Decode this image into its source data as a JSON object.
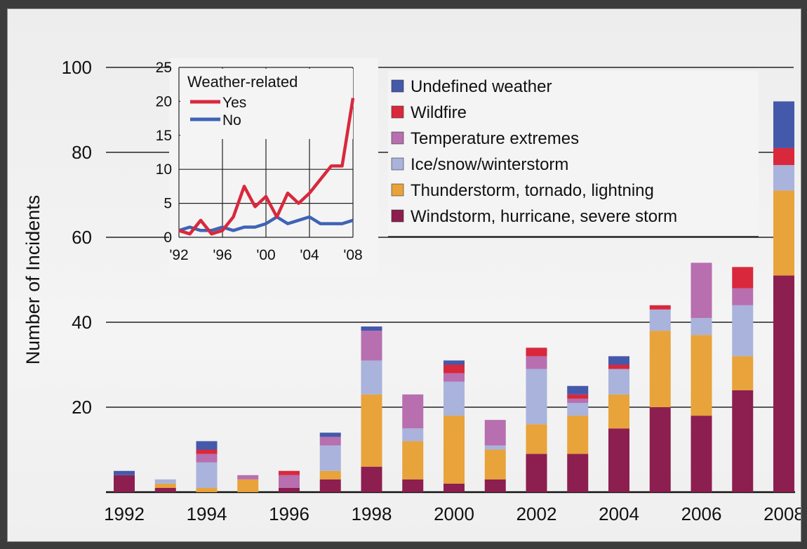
{
  "chart_data": {
    "type": "bar",
    "stacked": true,
    "ylabel": "Number of Incidents",
    "ylim": [
      0,
      100
    ],
    "yticks": [
      20,
      40,
      60,
      80,
      100
    ],
    "categories": [
      "1992",
      "1993",
      "1994",
      "1995",
      "1996",
      "1997",
      "1998",
      "1999",
      "2000",
      "2001",
      "2002",
      "2003",
      "2004",
      "2005",
      "2006",
      "2007",
      "2008"
    ],
    "xtick_labels": [
      "1992",
      "1994",
      "1996",
      "1998",
      "2000",
      "2002",
      "2004",
      "2006",
      "2008"
    ],
    "grid": true,
    "legend_position": "top-right",
    "series": [
      {
        "name": "Windstorm, hurricane, severe storm",
        "color": "#8c1f4f",
        "values": [
          4,
          1,
          0,
          0,
          1,
          3,
          6,
          3,
          2,
          3,
          9,
          9,
          15,
          20,
          18,
          24,
          51
        ]
      },
      {
        "name": "Thunderstorm, tornado, lightning",
        "color": "#e8a33a",
        "values": [
          0,
          1,
          1,
          3,
          0,
          2,
          17,
          9,
          16,
          7,
          7,
          9,
          8,
          18,
          19,
          8,
          20
        ]
      },
      {
        "name": "Ice/snow/winterstorm",
        "color": "#a9b3dc",
        "values": [
          0,
          1,
          6,
          0,
          0,
          6,
          8,
          3,
          8,
          1,
          13,
          3,
          6,
          5,
          4,
          12,
          6
        ]
      },
      {
        "name": "Temperature extremes",
        "color": "#b76fb0",
        "values": [
          0,
          0,
          2,
          1,
          3,
          2,
          7,
          8,
          2,
          6,
          3,
          1,
          0,
          0,
          13,
          4,
          0
        ]
      },
      {
        "name": "Wildfire",
        "color": "#d9283c",
        "values": [
          0,
          0,
          1,
          0,
          1,
          0,
          0,
          0,
          2,
          0,
          2,
          1,
          1,
          1,
          0,
          5,
          4
        ]
      },
      {
        "name": "Undefined weather",
        "color": "#4559aa",
        "values": [
          1,
          0,
          2,
          0,
          0,
          1,
          1,
          0,
          1,
          0,
          0,
          2,
          2,
          0,
          0,
          0,
          11
        ]
      }
    ],
    "legend_order": [
      "Undefined weather",
      "Wildfire",
      "Temperature extremes",
      "Ice/snow/winterstorm",
      "Thunderstorm, tornado, lightning",
      "Windstorm, hurricane, severe storm"
    ],
    "inset": {
      "type": "line",
      "title": "Weather-related",
      "ylim": [
        0,
        25
      ],
      "yticks": [
        0,
        5,
        10,
        15,
        20,
        25
      ],
      "xtick_labels": [
        "'92",
        "'96",
        "'00",
        "'04",
        "'08"
      ],
      "x": [
        1992,
        1993,
        1994,
        1995,
        1996,
        1997,
        1998,
        1999,
        2000,
        2001,
        2002,
        2003,
        2004,
        2005,
        2006,
        2007,
        2008
      ],
      "series": [
        {
          "name": "Yes",
          "color": "#d9283c",
          "values": [
            1,
            0.5,
            2.5,
            0.5,
            1,
            3,
            7.5,
            4.5,
            6,
            3,
            6.5,
            5,
            6.5,
            8.5,
            10.5,
            10.5,
            20.5
          ]
        },
        {
          "name": "No",
          "color": "#3f63b5",
          "values": [
            1,
            1.5,
            1,
            1,
            1.5,
            1,
            1.5,
            1.5,
            2,
            3,
            2,
            2.5,
            3,
            2,
            2,
            2,
            2.5
          ]
        }
      ]
    }
  }
}
